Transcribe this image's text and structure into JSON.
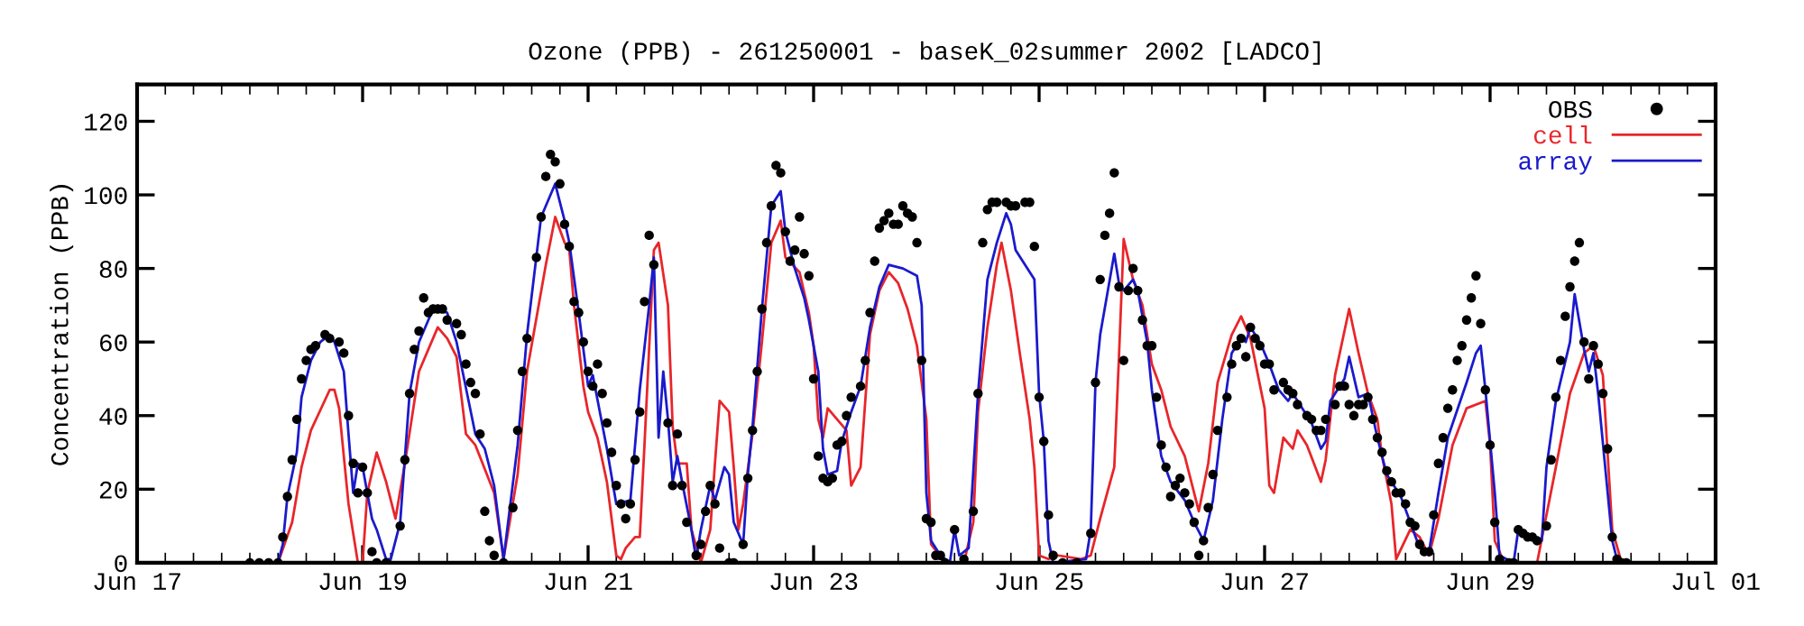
{
  "chart_data": {
    "type": "line",
    "title": "Ozone (PPB) - 261250001 - baseK_02summer 2002 [LADCO]",
    "ylabel": "Concentration (PPB)",
    "xlim": [
      "2002-06-17",
      "2002-07-01"
    ],
    "ylim": [
      0,
      130
    ],
    "xticks": [
      {
        "value": "2002-06-17",
        "label": "Jun 17"
      },
      {
        "value": "2002-06-17T06:00",
        "label": null
      },
      {
        "value": "2002-06-17T12:00",
        "label": null
      },
      {
        "value": "2002-06-17T18:00",
        "label": null
      },
      {
        "value": "2002-06-18",
        "label": null
      },
      {
        "value": "2002-06-18T06:00",
        "label": null
      },
      {
        "value": "2002-06-18T12:00",
        "label": null
      },
      {
        "value": "2002-06-18T18:00",
        "label": null
      },
      {
        "value": "2002-06-19",
        "label": "Jun 19"
      },
      {
        "value": "2002-06-19T06:00",
        "label": null
      },
      {
        "value": "2002-06-19T12:00",
        "label": null
      },
      {
        "value": "2002-06-19T18:00",
        "label": null
      },
      {
        "value": "2002-06-20",
        "label": null
      },
      {
        "value": "2002-06-20T06:00",
        "label": null
      },
      {
        "value": "2002-06-20T12:00",
        "label": null
      },
      {
        "value": "2002-06-20T18:00",
        "label": null
      },
      {
        "value": "2002-06-21",
        "label": "Jun 21"
      },
      {
        "value": "2002-06-21T06:00",
        "label": null
      },
      {
        "value": "2002-06-21T12:00",
        "label": null
      },
      {
        "value": "2002-06-21T18:00",
        "label": null
      },
      {
        "value": "2002-06-22",
        "label": null
      },
      {
        "value": "2002-06-22T06:00",
        "label": null
      },
      {
        "value": "2002-06-22T12:00",
        "label": null
      },
      {
        "value": "2002-06-22T18:00",
        "label": null
      },
      {
        "value": "2002-06-23",
        "label": "Jun 23"
      },
      {
        "value": "2002-06-23T06:00",
        "label": null
      },
      {
        "value": "2002-06-23T12:00",
        "label": null
      },
      {
        "value": "2002-06-23T18:00",
        "label": null
      },
      {
        "value": "2002-06-24",
        "label": null
      },
      {
        "value": "2002-06-24T06:00",
        "label": null
      },
      {
        "value": "2002-06-24T12:00",
        "label": null
      },
      {
        "value": "2002-06-24T18:00",
        "label": null
      },
      {
        "value": "2002-06-25",
        "label": "Jun 25"
      },
      {
        "value": "2002-06-25T06:00",
        "label": null
      },
      {
        "value": "2002-06-25T12:00",
        "label": null
      },
      {
        "value": "2002-06-25T18:00",
        "label": null
      },
      {
        "value": "2002-06-26",
        "label": null
      },
      {
        "value": "2002-06-26T06:00",
        "label": null
      },
      {
        "value": "2002-06-26T12:00",
        "label": null
      },
      {
        "value": "2002-06-26T18:00",
        "label": null
      },
      {
        "value": "2002-06-27",
        "label": "Jun 27"
      },
      {
        "value": "2002-06-27T06:00",
        "label": null
      },
      {
        "value": "2002-06-27T12:00",
        "label": null
      },
      {
        "value": "2002-06-27T18:00",
        "label": null
      },
      {
        "value": "2002-06-28",
        "label": null
      },
      {
        "value": "2002-06-28T06:00",
        "label": null
      },
      {
        "value": "2002-06-28T12:00",
        "label": null
      },
      {
        "value": "2002-06-28T18:00",
        "label": null
      },
      {
        "value": "2002-06-29",
        "label": "Jun 29"
      },
      {
        "value": "2002-06-29T06:00",
        "label": null
      },
      {
        "value": "2002-06-29T12:00",
        "label": null
      },
      {
        "value": "2002-06-29T18:00",
        "label": null
      },
      {
        "value": "2002-06-30",
        "label": null
      },
      {
        "value": "2002-06-30T06:00",
        "label": null
      },
      {
        "value": "2002-06-30T12:00",
        "label": null
      },
      {
        "value": "2002-06-30T18:00",
        "label": null
      },
      {
        "value": "2002-07-01",
        "label": "Jul 01"
      }
    ],
    "yticks": [
      0,
      20,
      40,
      60,
      80,
      100,
      120
    ],
    "legend": "top right",
    "series": [
      {
        "name": "OBS",
        "type": "scatter",
        "marker": "circle",
        "color": "#000000",
        "x": [
          "2002-06-18T00:00",
          "2002-06-18T02:00",
          "2002-06-18T04:00",
          "2002-06-18T06:00",
          "2002-06-18T07:00",
          "2002-06-18T08:00",
          "2002-06-18T09:00",
          "2002-06-18T10:00",
          "2002-06-18T11:00",
          "2002-06-18T12:00",
          "2002-06-18T13:00",
          "2002-06-18T14:00",
          "2002-06-18T16:00",
          "2002-06-18T17:00",
          "2002-06-18T19:00",
          "2002-06-18T20:00",
          "2002-06-18T21:00",
          "2002-06-18T22:00",
          "2002-06-18T23:00",
          "2002-06-19T00:00",
          "2002-06-19T01:00",
          "2002-06-19T02:00",
          "2002-06-19T03:00",
          "2002-06-19T05:00",
          "2002-06-19T08:00",
          "2002-06-19T09:00",
          "2002-06-19T10:00",
          "2002-06-19T11:00",
          "2002-06-19T12:00",
          "2002-06-19T13:00",
          "2002-06-19T14:00",
          "2002-06-19T15:00",
          "2002-06-19T16:00",
          "2002-06-19T17:00",
          "2002-06-19T18:00",
          "2002-06-19T20:00",
          "2002-06-19T21:00",
          "2002-06-19T22:00",
          "2002-06-19T23:00",
          "2002-06-20T00:00",
          "2002-06-20T01:00",
          "2002-06-20T02:00",
          "2002-06-20T03:00",
          "2002-06-20T04:00",
          "2002-06-20T06:00",
          "2002-06-20T08:00",
          "2002-06-20T09:00",
          "2002-06-20T10:00",
          "2002-06-20T11:00",
          "2002-06-20T13:00",
          "2002-06-20T14:00",
          "2002-06-20T15:00",
          "2002-06-20T16:00",
          "2002-06-20T17:00",
          "2002-06-20T18:00",
          "2002-06-20T19:00",
          "2002-06-20T20:00",
          "2002-06-20T21:00",
          "2002-06-20T22:00",
          "2002-06-20T23:00",
          "2002-06-21T00:00",
          "2002-06-21T01:00",
          "2002-06-21T02:00",
          "2002-06-21T03:00",
          "2002-06-21T04:00",
          "2002-06-21T05:00",
          "2002-06-21T06:00",
          "2002-06-21T07:00",
          "2002-06-21T08:00",
          "2002-06-21T09:00",
          "2002-06-21T10:00",
          "2002-06-21T11:00",
          "2002-06-21T12:00",
          "2002-06-21T13:00",
          "2002-06-21T14:00",
          "2002-06-21T17:00",
          "2002-06-21T18:00",
          "2002-06-21T19:00",
          "2002-06-21T20:00",
          "2002-06-21T21:00",
          "2002-06-21T23:00",
          "2002-06-22T00:00",
          "2002-06-22T01:00",
          "2002-06-22T02:00",
          "2002-06-22T03:00",
          "2002-06-22T04:00",
          "2002-06-22T06:00",
          "2002-06-22T07:00",
          "2002-06-22T09:00",
          "2002-06-22T10:00",
          "2002-06-22T11:00",
          "2002-06-22T12:00",
          "2002-06-22T13:00",
          "2002-06-22T14:00",
          "2002-06-22T15:00",
          "2002-06-22T16:00",
          "2002-06-22T17:00",
          "2002-06-22T18:00",
          "2002-06-22T19:00",
          "2002-06-22T20:00",
          "2002-06-22T21:00",
          "2002-06-22T22:00",
          "2002-06-22T23:00",
          "2002-06-23T00:00",
          "2002-06-23T01:00",
          "2002-06-23T02:00",
          "2002-06-23T03:00",
          "2002-06-23T04:00",
          "2002-06-23T05:00",
          "2002-06-23T06:00",
          "2002-06-23T07:00",
          "2002-06-23T08:00",
          "2002-06-23T10:00",
          "2002-06-23T11:00",
          "2002-06-23T12:00",
          "2002-06-23T13:00",
          "2002-06-23T14:00",
          "2002-06-23T15:00",
          "2002-06-23T16:00",
          "2002-06-23T17:00",
          "2002-06-23T18:00",
          "2002-06-23T19:00",
          "2002-06-23T20:00",
          "2002-06-23T21:00",
          "2002-06-23T22:00",
          "2002-06-23T23:00",
          "2002-06-24T00:00",
          "2002-06-24T01:00",
          "2002-06-24T02:00",
          "2002-06-24T03:00",
          "2002-06-24T04:00",
          "2002-06-24T06:00",
          "2002-06-24T08:00",
          "2002-06-24T10:00",
          "2002-06-24T11:00",
          "2002-06-24T12:00",
          "2002-06-24T13:00",
          "2002-06-24T14:00",
          "2002-06-24T15:00",
          "2002-06-24T17:00",
          "2002-06-24T18:00",
          "2002-06-24T19:00",
          "2002-06-24T21:00",
          "2002-06-24T22:00",
          "2002-06-24T23:00",
          "2002-06-25T00:00",
          "2002-06-25T01:00",
          "2002-06-25T02:00",
          "2002-06-25T03:00",
          "2002-06-25T05:00",
          "2002-06-25T08:00",
          "2002-06-25T11:00",
          "2002-06-25T12:00",
          "2002-06-25T13:00",
          "2002-06-25T14:00",
          "2002-06-25T15:00",
          "2002-06-25T16:00",
          "2002-06-25T17:00",
          "2002-06-25T18:00",
          "2002-06-25T19:00",
          "2002-06-25T20:00",
          "2002-06-25T21:00",
          "2002-06-25T22:00",
          "2002-06-25T23:00",
          "2002-06-26T00:00",
          "2002-06-26T01:00",
          "2002-06-26T02:00",
          "2002-06-26T03:00",
          "2002-06-26T04:00",
          "2002-06-26T05:00",
          "2002-06-26T06:00",
          "2002-06-26T07:00",
          "2002-06-26T08:00",
          "2002-06-26T09:00",
          "2002-06-26T10:00",
          "2002-06-26T11:00",
          "2002-06-26T12:00",
          "2002-06-26T13:00",
          "2002-06-26T14:00",
          "2002-06-26T16:00",
          "2002-06-26T17:00",
          "2002-06-26T18:00",
          "2002-06-26T19:00",
          "2002-06-26T20:00",
          "2002-06-26T21:00",
          "2002-06-26T22:00",
          "2002-06-26T23:00",
          "2002-06-27T00:00",
          "2002-06-27T01:00",
          "2002-06-27T02:00",
          "2002-06-27T04:00",
          "2002-06-27T05:00",
          "2002-06-27T06:00",
          "2002-06-27T07:00",
          "2002-06-27T09:00",
          "2002-06-27T10:00",
          "2002-06-27T11:00",
          "2002-06-27T12:00",
          "2002-06-27T13:00",
          "2002-06-27T15:00",
          "2002-06-27T16:00",
          "2002-06-27T17:00",
          "2002-06-27T18:00",
          "2002-06-27T19:00",
          "2002-06-27T20:00",
          "2002-06-27T21:00",
          "2002-06-27T22:00",
          "2002-06-27T23:00",
          "2002-06-28T00:00",
          "2002-06-28T01:00",
          "2002-06-28T02:00",
          "2002-06-28T03:00",
          "2002-06-28T04:00",
          "2002-06-28T05:00",
          "2002-06-28T06:00",
          "2002-06-28T07:00",
          "2002-06-28T08:00",
          "2002-06-28T09:00",
          "2002-06-28T10:00",
          "2002-06-28T11:00",
          "2002-06-28T12:00",
          "2002-06-28T13:00",
          "2002-06-28T14:00",
          "2002-06-28T15:00",
          "2002-06-28T16:00",
          "2002-06-28T17:00",
          "2002-06-28T18:00",
          "2002-06-28T19:00",
          "2002-06-28T20:00",
          "2002-06-28T21:00",
          "2002-06-28T22:00",
          "2002-06-28T23:00",
          "2002-06-29T00:00",
          "2002-06-29T01:00",
          "2002-06-29T02:00",
          "2002-06-29T04:00",
          "2002-06-29T05:00",
          "2002-06-29T06:00",
          "2002-06-29T07:00",
          "2002-06-29T08:00",
          "2002-06-29T09:00",
          "2002-06-29T10:00",
          "2002-06-29T12:00",
          "2002-06-29T13:00",
          "2002-06-29T14:00",
          "2002-06-29T15:00",
          "2002-06-29T16:00",
          "2002-06-29T17:00",
          "2002-06-29T18:00",
          "2002-06-29T19:00",
          "2002-06-29T20:00",
          "2002-06-29T21:00",
          "2002-06-29T22:00",
          "2002-06-29T23:00",
          "2002-06-30T00:00",
          "2002-06-30T01:00",
          "2002-06-30T02:00",
          "2002-06-30T03:00",
          "2002-06-30T04:00",
          "2002-06-30T05:00"
        ],
        "values": [
          0,
          0,
          0,
          0,
          7,
          18,
          28,
          39,
          50,
          55,
          58,
          59,
          62,
          61,
          60,
          57,
          40,
          27,
          19,
          26,
          19,
          3,
          0,
          0,
          10,
          28,
          46,
          58,
          63,
          72,
          68,
          69,
          69,
          69,
          66,
          65,
          62,
          54,
          49,
          46,
          35,
          14,
          6,
          2,
          0,
          15,
          36,
          52,
          61,
          83,
          94,
          105,
          111,
          109,
          103,
          92,
          86,
          71,
          68,
          60,
          52,
          48,
          54,
          46,
          38,
          30,
          21,
          16,
          12,
          16,
          28,
          41,
          71,
          89,
          81,
          38,
          21,
          35,
          21,
          11,
          2,
          5,
          14,
          21,
          16,
          4,
          0,
          0,
          5,
          23,
          36,
          52,
          69,
          87,
          97,
          108,
          106,
          90,
          82,
          85,
          94,
          84,
          78,
          50,
          29,
          23,
          22,
          23,
          32,
          33,
          40,
          45,
          48,
          55,
          68,
          82,
          91,
          93,
          95,
          92,
          92,
          97,
          95,
          94,
          87,
          55,
          12,
          11,
          2,
          2,
          0,
          9,
          1,
          14,
          46,
          87,
          96,
          98,
          98,
          98,
          97,
          97,
          98,
          98,
          86,
          45,
          33,
          13,
          2,
          0,
          0,
          8,
          49,
          77,
          89,
          95,
          106,
          75,
          55,
          74,
          80,
          74,
          66,
          59,
          59,
          45,
          32,
          26,
          18,
          21,
          23,
          19,
          16,
          11,
          2,
          6,
          15,
          24,
          36,
          45,
          54,
          59,
          61,
          56,
          64,
          61,
          59,
          54,
          54,
          47,
          49,
          47,
          46,
          43,
          40,
          39,
          36,
          36,
          39,
          43,
          48,
          48,
          43,
          40,
          43,
          43,
          45,
          39,
          34,
          30,
          25,
          22,
          19,
          19,
          16,
          11,
          10,
          5,
          3,
          3,
          13,
          27,
          34,
          42,
          47,
          55,
          59,
          66,
          72,
          78,
          65,
          47,
          32,
          11,
          1,
          0,
          0,
          9,
          8,
          7,
          7,
          6,
          10,
          28,
          45,
          55,
          67,
          75,
          82,
          87,
          60,
          50,
          59,
          54,
          46,
          31,
          7,
          1,
          0,
          0
        ]
      },
      {
        "name": "cell",
        "color": "#e8262a",
        "line_style": "solid",
        "x": [
          "2002-06-18T02:00",
          "2002-06-18T06:00",
          "2002-06-18T09:00",
          "2002-06-18T11:00",
          "2002-06-18T13:00",
          "2002-06-18T17:00",
          "2002-06-18T18:00",
          "2002-06-18T19:00",
          "2002-06-18T21:00",
          "2002-06-18T23:00",
          "2002-06-19T00:00",
          "2002-06-19T01:00",
          "2002-06-19T03:00",
          "2002-06-19T05:00",
          "2002-06-19T07:00",
          "2002-06-19T09:00",
          "2002-06-19T12:00",
          "2002-06-19T16:00",
          "2002-06-19T18:00",
          "2002-06-19T20:00",
          "2002-06-19T22:00",
          "2002-06-20T00:00",
          "2002-06-20T04:00",
          "2002-06-20T06:00",
          "2002-06-20T09:00",
          "2002-06-20T11:00",
          "2002-06-20T15:00",
          "2002-06-20T17:00",
          "2002-06-20T19:00",
          "2002-06-20T20:00",
          "2002-06-20T21:00",
          "2002-06-20T23:00",
          "2002-06-21T00:00",
          "2002-06-21T02:00",
          "2002-06-21T04:00",
          "2002-06-21T06:00",
          "2002-06-21T07:00",
          "2002-06-21T08:00",
          "2002-06-21T10:00",
          "2002-06-21T11:00",
          "2002-06-21T12:00",
          "2002-06-21T14:00",
          "2002-06-21T15:00",
          "2002-06-21T17:00",
          "2002-06-21T18:00",
          "2002-06-21T19:00",
          "2002-06-21T21:00",
          "2002-06-21T22:00",
          "2002-06-22T00:00",
          "2002-06-22T02:00",
          "2002-06-22T03:00",
          "2002-06-22T04:00",
          "2002-06-22T06:00",
          "2002-06-22T07:00",
          "2002-06-22T08:00",
          "2002-06-22T09:00",
          "2002-06-22T11:00",
          "2002-06-22T13:00",
          "2002-06-22T15:00",
          "2002-06-22T17:00",
          "2002-06-22T18:00",
          "2002-06-22T21:00",
          "2002-06-22T23:00",
          "2002-06-23T00:00",
          "2002-06-23T01:00",
          "2002-06-23T02:00",
          "2002-06-23T03:00",
          "2002-06-23T05:00",
          "2002-06-23T07:00",
          "2002-06-23T08:00",
          "2002-06-23T10:00",
          "2002-06-23T12:00",
          "2002-06-23T14:00",
          "2002-06-23T16:00",
          "2002-06-23T18:00",
          "2002-06-23T20:00",
          "2002-06-23T22:00",
          "2002-06-24T00:00",
          "2002-06-24T01:00",
          "2002-06-24T04:00",
          "2002-06-24T08:00",
          "2002-06-24T10:00",
          "2002-06-24T11:00",
          "2002-06-24T13:00",
          "2002-06-24T15:00",
          "2002-06-24T16:00",
          "2002-06-24T18:00",
          "2002-06-24T20:00",
          "2002-06-24T22:00",
          "2002-06-24T23:00",
          "2002-06-25T00:00",
          "2002-06-25T02:00",
          "2002-06-25T04:00",
          "2002-06-25T09:00",
          "2002-06-25T11:00",
          "2002-06-25T13:00",
          "2002-06-25T16:00",
          "2002-06-25T17:00",
          "2002-06-25T18:00",
          "2002-06-25T20:00",
          "2002-06-25T22:00",
          "2002-06-26T00:00",
          "2002-06-26T02:00",
          "2002-06-26T04:00",
          "2002-06-26T07:00",
          "2002-06-26T10:00",
          "2002-06-26T12:00",
          "2002-06-26T14:00",
          "2002-06-26T17:00",
          "2002-06-26T19:00",
          "2002-06-26T21:00",
          "2002-06-27T00:00",
          "2002-06-27T01:00",
          "2002-06-27T02:00",
          "2002-06-27T04:00",
          "2002-06-27T06:00",
          "2002-06-27T07:00",
          "2002-06-27T09:00",
          "2002-06-27T12:00",
          "2002-06-27T13:00",
          "2002-06-27T15:00",
          "2002-06-27T18:00",
          "2002-06-27T20:00",
          "2002-06-27T22:00",
          "2002-06-28T00:00",
          "2002-06-28T01:00",
          "2002-06-28T03:00",
          "2002-06-28T04:00",
          "2002-06-28T07:00",
          "2002-06-28T09:00",
          "2002-06-28T11:00",
          "2002-06-28T13:00",
          "2002-06-28T16:00",
          "2002-06-28T19:00",
          "2002-06-28T23:00",
          "2002-06-29T00:00",
          "2002-06-29T01:00",
          "2002-06-29T03:00",
          "2002-06-29T10:00",
          "2002-06-29T14:00",
          "2002-06-29T17:00",
          "2002-06-29T20:00",
          "2002-06-29T22:00",
          "2002-06-30T00:00",
          "2002-06-30T02:00",
          "2002-06-30T04:00",
          "2002-06-30T06:00"
        ],
        "values": [
          0,
          0,
          11,
          26,
          36,
          47,
          47,
          42,
          16,
          0,
          0,
          19,
          30,
          22,
          12,
          27,
          52,
          64,
          61,
          56,
          35,
          32,
          19,
          1,
          24,
          52,
          81,
          94,
          87,
          85,
          70,
          48,
          41,
          34,
          22,
          2,
          1,
          4,
          7,
          7,
          32,
          85,
          87,
          70,
          37,
          27,
          27,
          9,
          0,
          9,
          27,
          44,
          41,
          26,
          9,
          16,
          35,
          60,
          87,
          93,
          83,
          79,
          68,
          59,
          39,
          34,
          42,
          39,
          36,
          21,
          26,
          62,
          74,
          79,
          76,
          69,
          59,
          39,
          5,
          0,
          0,
          11,
          41,
          64,
          81,
          87,
          74,
          56,
          39,
          26,
          2,
          1,
          2,
          1,
          2,
          12,
          26,
          56,
          88,
          77,
          70,
          54,
          47,
          37,
          29,
          14,
          27,
          49,
          62,
          67,
          61,
          42,
          21,
          19,
          34,
          31,
          36,
          32,
          22,
          28,
          51,
          69,
          57,
          46,
          39,
          29,
          16,
          1,
          9,
          7,
          2,
          12,
          32,
          42,
          44,
          32,
          6,
          0,
          0,
          26,
          46,
          57,
          59,
          51,
          9,
          0,
          0
        ]
      },
      {
        "name": "array",
        "color": "#1a1acc",
        "line_style": "solid",
        "x": [
          "2002-06-18T00:00",
          "2002-06-18T06:00",
          "2002-06-18T07:00",
          "2002-06-18T08:00",
          "2002-06-18T10:00",
          "2002-06-18T11:00",
          "2002-06-18T13:00",
          "2002-06-18T15:00",
          "2002-06-18T17:00",
          "2002-06-18T18:00",
          "2002-06-18T20:00",
          "2002-06-18T21:00",
          "2002-06-18T22:00",
          "2002-06-18T23:00",
          "2002-06-19T00:00",
          "2002-06-19T02:00",
          "2002-06-19T03:00",
          "2002-06-19T05:00",
          "2002-06-19T06:00",
          "2002-06-19T08:00",
          "2002-06-19T10:00",
          "2002-06-19T12:00",
          "2002-06-19T15:00",
          "2002-06-19T18:00",
          "2002-06-19T20:00",
          "2002-06-20T00:00",
          "2002-06-20T02:00",
          "2002-06-20T04:00",
          "2002-06-20T06:00",
          "2002-06-20T09:00",
          "2002-06-20T11:00",
          "2002-06-20T14:00",
          "2002-06-20T17:00",
          "2002-06-20T19:00",
          "2002-06-20T20:00",
          "2002-06-20T22:00",
          "2002-06-21T00:00",
          "2002-06-21T01:00",
          "2002-06-21T04:00",
          "2002-06-21T06:00",
          "2002-06-21T09:00",
          "2002-06-21T11:00",
          "2002-06-21T13:00",
          "2002-06-21T14:00",
          "2002-06-21T15:00",
          "2002-06-21T16:00",
          "2002-06-21T17:00",
          "2002-06-21T18:00",
          "2002-06-21T19:00",
          "2002-06-21T20:00",
          "2002-06-21T22:00",
          "2002-06-21T23:00",
          "2002-06-22T00:00",
          "2002-06-22T02:00",
          "2002-06-22T03:00",
          "2002-06-22T05:00",
          "2002-06-22T06:00",
          "2002-06-22T07:00",
          "2002-06-22T09:00",
          "2002-06-22T10:00",
          "2002-06-22T11:00",
          "2002-06-22T13:00",
          "2002-06-22T15:00",
          "2002-06-22T17:00",
          "2002-06-22T18:00",
          "2002-06-22T20:00",
          "2002-06-22T22:00",
          "2002-06-22T23:00",
          "2002-06-23T01:00",
          "2002-06-23T02:00",
          "2002-06-23T03:00",
          "2002-06-23T05:00",
          "2002-06-23T06:00",
          "2002-06-23T08:00",
          "2002-06-23T10:00",
          "2002-06-23T12:00",
          "2002-06-23T14:00",
          "2002-06-23T16:00",
          "2002-06-23T19:00",
          "2002-06-23T22:00",
          "2002-06-23T23:00",
          "2002-06-24T00:00",
          "2002-06-24T01:00",
          "2002-06-24T03:00",
          "2002-06-24T05:00",
          "2002-06-24T06:00",
          "2002-06-24T07:00",
          "2002-06-24T09:00",
          "2002-06-24T11:00",
          "2002-06-24T13:00",
          "2002-06-24T15:00",
          "2002-06-24T17:00",
          "2002-06-24T18:00",
          "2002-06-24T19:00",
          "2002-06-24T21:00",
          "2002-06-24T23:00",
          "2002-06-25T00:00",
          "2002-06-25T01:00",
          "2002-06-25T02:00",
          "2002-06-25T03:00",
          "2002-06-25T10:00",
          "2002-06-25T11:00",
          "2002-06-25T12:00",
          "2002-06-25T13:00",
          "2002-06-25T16:00",
          "2002-06-25T17:00",
          "2002-06-25T18:00",
          "2002-06-25T20:00",
          "2002-06-25T21:00",
          "2002-06-25T23:00",
          "2002-06-26T00:00",
          "2002-06-26T02:00",
          "2002-06-26T04:00",
          "2002-06-26T07:00",
          "2002-06-26T09:00",
          "2002-06-26T11:00",
          "2002-06-26T13:00",
          "2002-06-26T15:00",
          "2002-06-26T17:00",
          "2002-06-26T19:00",
          "2002-06-26T20:00",
          "2002-06-26T21:00",
          "2002-06-26T23:00",
          "2002-06-27T01:00",
          "2002-06-27T03:00",
          "2002-06-27T05:00",
          "2002-06-27T06:00",
          "2002-06-27T08:00",
          "2002-06-27T10:00",
          "2002-06-27T12:00",
          "2002-06-27T13:00",
          "2002-06-27T14:00",
          "2002-06-27T17:00",
          "2002-06-27T18:00",
          "2002-06-27T20:00",
          "2002-06-27T22:00",
          "2002-06-28T00:00",
          "2002-06-28T02:00",
          "2002-06-28T05:00",
          "2002-06-28T07:00",
          "2002-06-28T09:00",
          "2002-06-28T11:00",
          "2002-06-28T13:00",
          "2002-06-28T15:00",
          "2002-06-28T19:00",
          "2002-06-28T21:00",
          "2002-06-28T22:00",
          "2002-06-28T23:00",
          "2002-06-29T01:00",
          "2002-06-29T02:00",
          "2002-06-29T05:00",
          "2002-06-29T06:00",
          "2002-06-29T08:00",
          "2002-06-29T09:00",
          "2002-06-29T11:00",
          "2002-06-29T12:00",
          "2002-06-29T14:00",
          "2002-06-29T17:00",
          "2002-06-29T18:00",
          "2002-06-29T20:00",
          "2002-06-29T21:00",
          "2002-06-29T22:00",
          "2002-06-29T23:00",
          "2002-06-30T02:00",
          "2002-06-30T03:00",
          "2002-06-30T05:00"
        ],
        "values": [
          0,
          0,
          5,
          18,
          30,
          45,
          55,
          60,
          62,
          60,
          52,
          35,
          19,
          27,
          26,
          12,
          9,
          1,
          1,
          11,
          46,
          60,
          69,
          68,
          60,
          35,
          31,
          21,
          1,
          32,
          62,
          94,
          103,
          93,
          87,
          68,
          48,
          51,
          31,
          16,
          17,
          47,
          70,
          83,
          34,
          52,
          39,
          22,
          29,
          22,
          9,
          1,
          9,
          21,
          17,
          26,
          24,
          11,
          5,
          24,
          37,
          69,
          97,
          101,
          90,
          80,
          72,
          66,
          52,
          31,
          24,
          25,
          33,
          41,
          48,
          64,
          75,
          81,
          80,
          78,
          70,
          19,
          6,
          2,
          0,
          9,
          2,
          4,
          46,
          77,
          87,
          95,
          92,
          85,
          81,
          77,
          46,
          33,
          6,
          0,
          1,
          9,
          49,
          62,
          84,
          76,
          74,
          77,
          74,
          60,
          47,
          29,
          22,
          17,
          11,
          6,
          17,
          39,
          57,
          61,
          60,
          64,
          60,
          54,
          47,
          44,
          46,
          42,
          38,
          31,
          33,
          44,
          50,
          56,
          45,
          46,
          34,
          24,
          18,
          11,
          4,
          3,
          19,
          34,
          49,
          57,
          59,
          47,
          19,
          2,
          0,
          9,
          8,
          7,
          6,
          26,
          44,
          60,
          73,
          58,
          52,
          57,
          46,
          6,
          1,
          0
        ]
      }
    ]
  }
}
